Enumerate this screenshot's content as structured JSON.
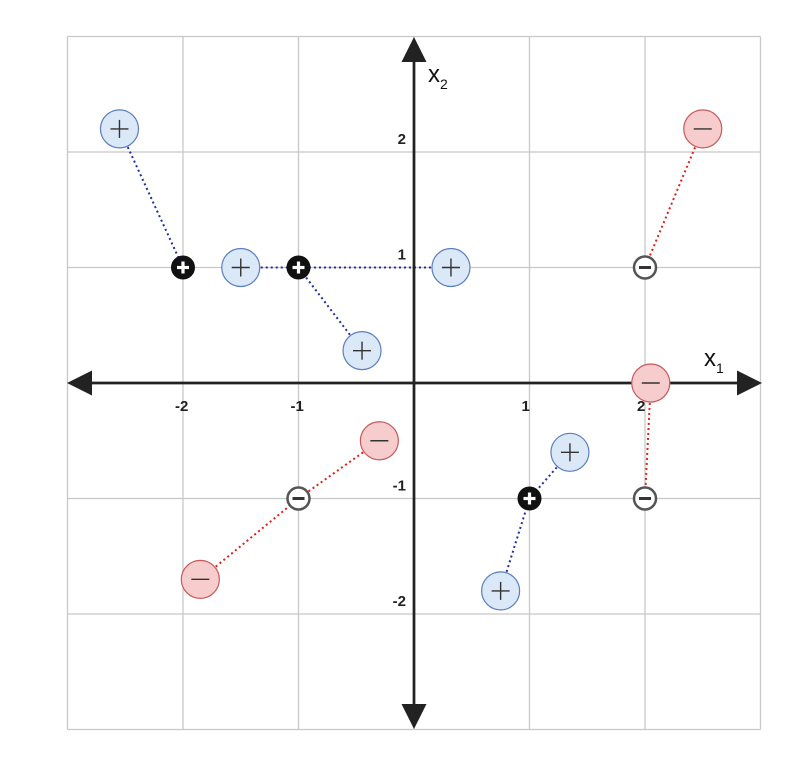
{
  "chart_data": {
    "type": "scatter",
    "title": "",
    "xlabel": "x",
    "xlabel_sub": "1",
    "ylabel": "x",
    "ylabel_sub": "2",
    "xlim": [
      -3,
      3
    ],
    "ylim": [
      -3,
      3
    ],
    "grid": true,
    "x_ticks": [
      {
        "value": -2,
        "label": "-2"
      },
      {
        "value": -1,
        "label": "-1"
      },
      {
        "value": 1,
        "label": "1"
      },
      {
        "value": 2,
        "label": "2"
      }
    ],
    "y_ticks": [
      {
        "value": 2,
        "label": "2"
      },
      {
        "value": 1,
        "label": "1"
      },
      {
        "value": -1,
        "label": "-1"
      },
      {
        "value": -2,
        "label": "-2"
      }
    ],
    "series": [
      {
        "kind": "prototype",
        "points": [
          {
            "x": -2,
            "y": 1,
            "sign": "+"
          },
          {
            "x": -1,
            "y": 1,
            "sign": "+"
          },
          {
            "x": 1,
            "y": -1,
            "sign": "+"
          },
          {
            "x": 2,
            "y": 1,
            "sign": "−"
          },
          {
            "x": -1,
            "y": -1,
            "sign": "−"
          },
          {
            "x": 2,
            "y": -1,
            "sign": "−"
          }
        ]
      },
      {
        "kind": "sample",
        "points": [
          {
            "x": -2.55,
            "y": 2.2,
            "sign": "+",
            "link": [
              -2,
              1
            ]
          },
          {
            "x": -1.5,
            "y": 1,
            "sign": "+",
            "link": [
              -1,
              1
            ]
          },
          {
            "x": 0.32,
            "y": 1,
            "sign": "+",
            "link": [
              -1,
              1
            ]
          },
          {
            "x": -0.45,
            "y": 0.28,
            "sign": "+",
            "link": [
              -1,
              1
            ]
          },
          {
            "x": 1.35,
            "y": -0.6,
            "sign": "+",
            "link": [
              1,
              -1
            ]
          },
          {
            "x": 0.75,
            "y": -1.8,
            "sign": "+",
            "link": [
              1,
              -1
            ]
          },
          {
            "x": 2.5,
            "y": 2.2,
            "sign": "−",
            "link": [
              2,
              1
            ]
          },
          {
            "x": 2.05,
            "y": 0,
            "sign": "−",
            "link": [
              2,
              -1
            ]
          },
          {
            "x": -0.3,
            "y": -0.5,
            "sign": "−",
            "link": [
              -1,
              -1
            ]
          },
          {
            "x": -1.85,
            "y": -1.7,
            "sign": "−",
            "link": [
              -1,
              -1
            ]
          }
        ]
      }
    ]
  },
  "colors": {
    "positive_fill": "#dbe8f8",
    "positive_stroke": "#5a7fc0",
    "positive_link": "#1f2f9e",
    "negative_fill": "#f6cccc",
    "negative_stroke": "#c85a5a",
    "negative_link": "#e0201a",
    "grid": "#c8c8c8",
    "axis": "#222222"
  }
}
